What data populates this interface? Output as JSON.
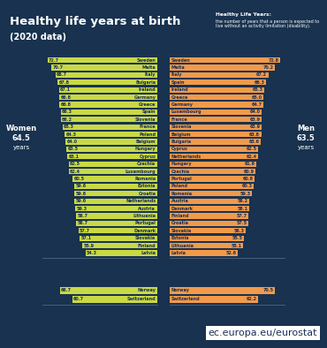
{
  "title": "Healthy life years at birth",
  "subtitle": "(2020 data)",
  "note": {
    "title": "Healthy Life Years:",
    "text": "the number of years that a person is expected to live without an activity limitation (disability)."
  },
  "footer": "ec.europa.eu/eurostat",
  "chart_data": [
    {
      "type": "bar",
      "orientation": "horizontal",
      "title": "Women",
      "average": 64.5,
      "average_unit": "years",
      "categories": [
        "Sweden",
        "Malta",
        "Italy",
        "Bulgaria",
        "Ireland",
        "Germany",
        "Greece",
        "Spain",
        "Slovenia",
        "France",
        "Poland",
        "Belgium",
        "Hungary",
        "Cyprus",
        "Czechia",
        "Luxembourg",
        "Romania",
        "Estonia",
        "Croatia",
        "Netherlands",
        "Austria",
        "Lithuania",
        "Portugal",
        "Denmark",
        "Slovakia",
        "Finland",
        "Latvia"
      ],
      "values": [
        72.7,
        70.7,
        68.7,
        67.8,
        67.1,
        66.8,
        66.8,
        66.3,
        66.2,
        65.3,
        64.3,
        64.0,
        63.5,
        63.1,
        62.5,
        62.4,
        60.5,
        59.6,
        59.6,
        59.6,
        59.3,
        58.7,
        58.7,
        57.7,
        57.1,
        55.9,
        54.3
      ],
      "color": "#c9d945",
      "xlim": [
        20,
        75
      ],
      "data_labels": true,
      "tick_labels": false
    },
    {
      "type": "bar",
      "orientation": "horizontal",
      "title": "Men",
      "average": 63.5,
      "average_unit": "years",
      "categories": [
        "Sweden",
        "Malta",
        "Italy",
        "Spain",
        "Ireland",
        "Greece",
        "Germany",
        "Luxembourg",
        "France",
        "Slovenia",
        "Belgium",
        "Bulgaria",
        "Cyprus",
        "Netherlands",
        "Hungary",
        "Czechia",
        "Portugal",
        "Poland",
        "Romania",
        "Austria",
        "Denmark",
        "Finland",
        "Croatia",
        "Slovakia",
        "Estonia",
        "Lithuania",
        "Latvia"
      ],
      "values": [
        72.8,
        70.2,
        67.2,
        66.3,
        65.3,
        65.0,
        64.7,
        64.0,
        63.9,
        63.9,
        63.8,
        63.6,
        62.5,
        62.4,
        61.6,
        60.9,
        60.8,
        60.3,
        59.3,
        58.2,
        58.1,
        57.7,
        57.5,
        56.3,
        55.5,
        55.1,
        52.6
      ],
      "color": "#f29a4a",
      "xlim": [
        20,
        75
      ],
      "data_labels": true,
      "tick_labels": false
    },
    {
      "type": "bar",
      "orientation": "horizontal",
      "categories": [
        "Norway",
        "Switzerland"
      ],
      "values": [
        66.7,
        60.7
      ],
      "color": "#c9d945",
      "xlim": [
        20,
        75
      ],
      "data_labels": true,
      "tick_labels": false
    },
    {
      "type": "bar",
      "orientation": "horizontal",
      "categories": [
        "Norway",
        "Switzerland"
      ],
      "values": [
        70.5,
        62.2
      ],
      "color": "#f29a4a",
      "xlim": [
        20,
        75
      ],
      "data_labels": true,
      "tick_labels": false
    }
  ]
}
